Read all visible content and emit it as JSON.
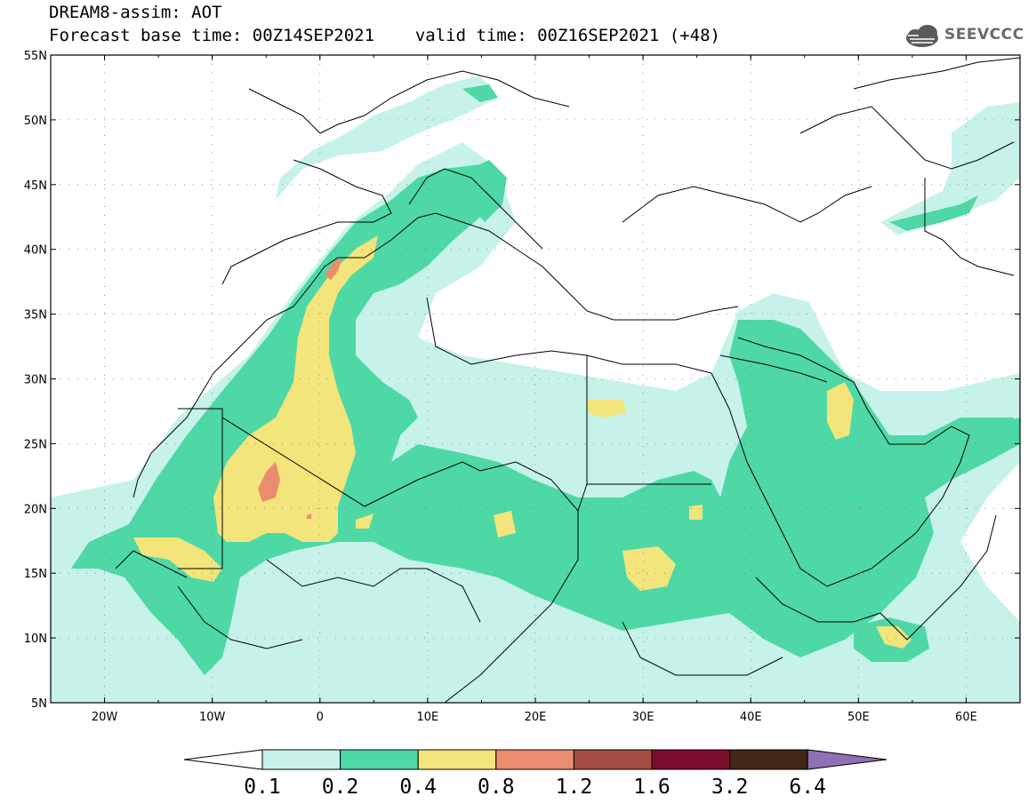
{
  "header": {
    "title": "DREAM8-assim: AOT",
    "forecast_line": "Forecast base time: 00Z14SEP2021",
    "valid_line": "valid time: 00Z16SEP2021 (+48)",
    "logo_text": "SEEVCCC"
  },
  "axes": {
    "lat_labels": [
      "55N",
      "50N",
      "45N",
      "40N",
      "35N",
      "30N",
      "25N",
      "20N",
      "15N",
      "10N",
      "5N"
    ],
    "lon_labels": [
      "20W",
      "10W",
      "0",
      "10E",
      "20E",
      "30E",
      "40E",
      "50E",
      "60E"
    ]
  },
  "colorbar": {
    "colors": [
      "#c6f2e9",
      "#4ed8a6",
      "#f3e47b",
      "#ea8d6e",
      "#a44c42",
      "#7a0d2b",
      "#3f2616",
      "#8f6fb6"
    ],
    "labels": [
      "0.1",
      "0.2",
      "0.4",
      "0.8",
      "1.2",
      "1.6",
      "3.2",
      "6.4"
    ]
  },
  "colors": {
    "aot_01": "#c6f2e9",
    "aot_02": "#4ed8a6",
    "aot_04": "#f3e47b",
    "aot_08": "#ea8d6e"
  }
}
